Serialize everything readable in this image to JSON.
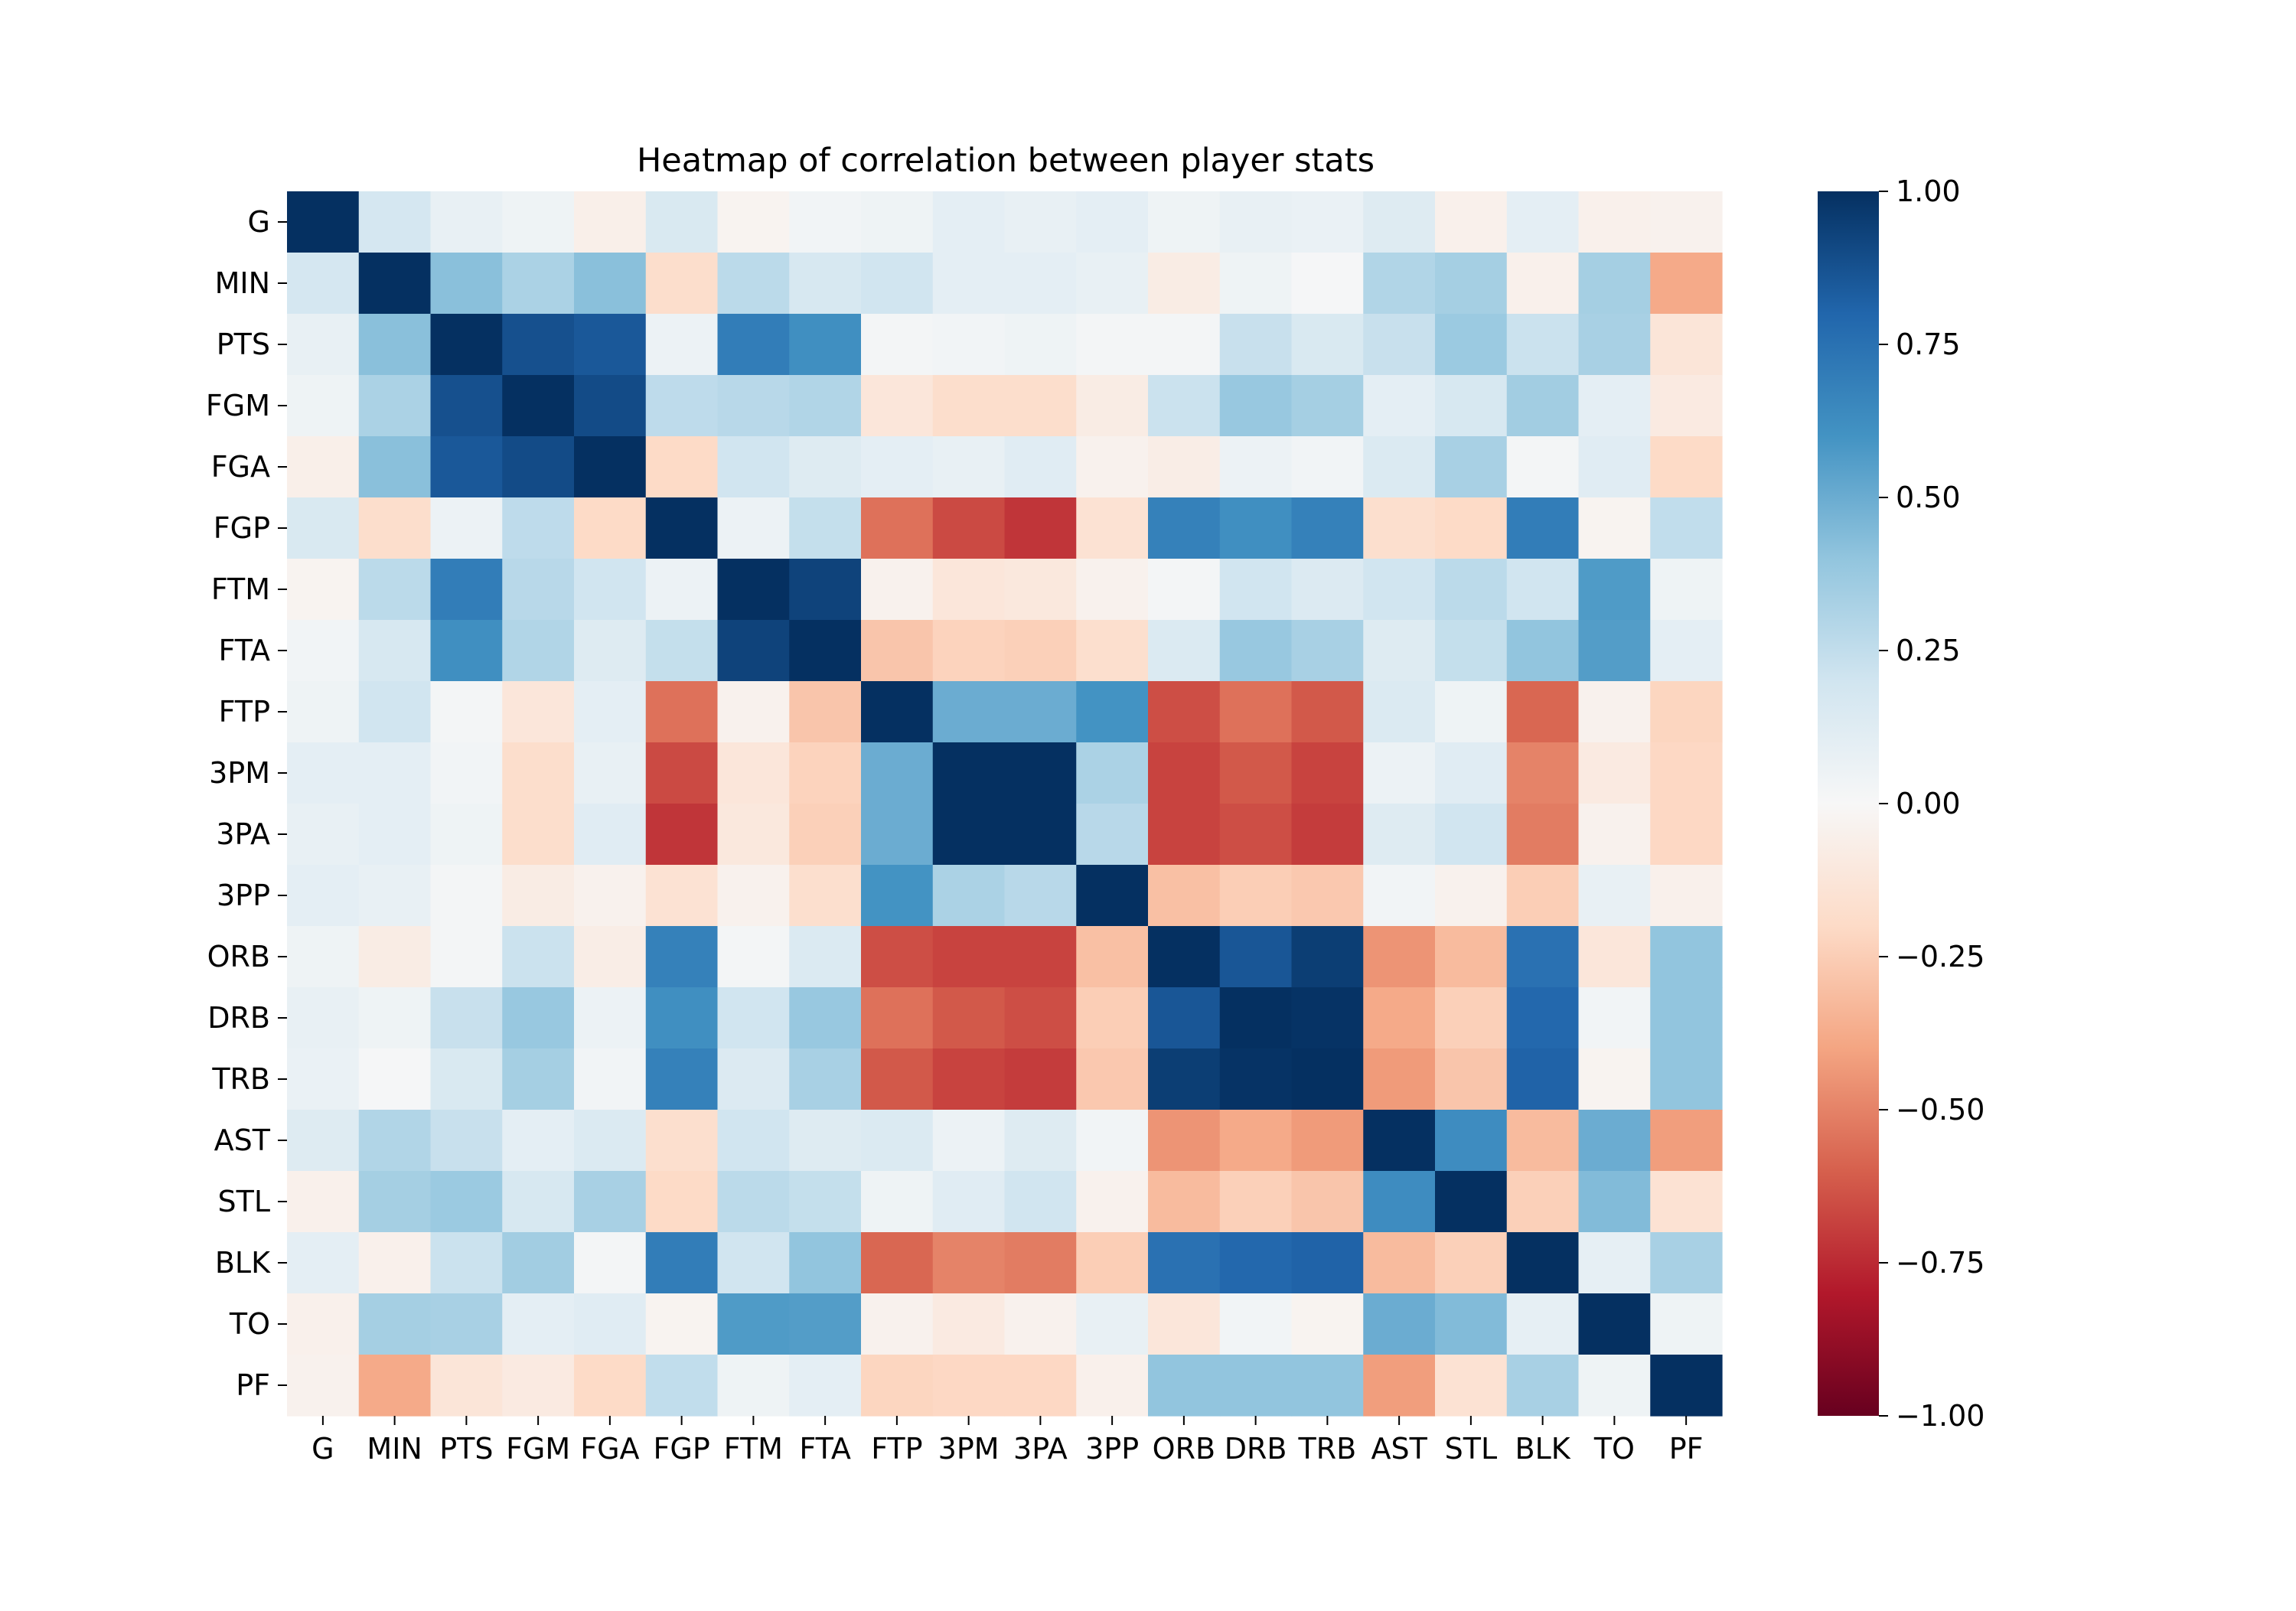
{
  "chart_data": {
    "type": "heatmap",
    "title": "Heatmap of correlation between player stats",
    "xlabel": "",
    "ylabel": "",
    "x_categories": [
      "G",
      "MIN",
      "PTS",
      "FGM",
      "FGA",
      "FGP",
      "FTM",
      "FTA",
      "FTP",
      "3PM",
      "3PA",
      "3PP",
      "ORB",
      "DRB",
      "TRB",
      "AST",
      "STL",
      "BLK",
      "TO",
      "PF"
    ],
    "y_categories": [
      "G",
      "MIN",
      "PTS",
      "FGM",
      "FGA",
      "FGP",
      "FTM",
      "FTA",
      "FTP",
      "3PM",
      "3PA",
      "3PP",
      "ORB",
      "DRB",
      "TRB",
      "AST",
      "STL",
      "BLK",
      "TO",
      "PF"
    ],
    "value_range": [
      -1.0,
      1.0
    ],
    "colormap": "RdBu",
    "colorbar": {
      "ticks": [
        1.0,
        0.75,
        0.5,
        0.25,
        0.0,
        -0.25,
        -0.5,
        -0.75,
        -1.0
      ],
      "tick_labels": [
        "1.00",
        "0.75",
        "0.50",
        "0.25",
        "0.00",
        "−0.25",
        "−0.50",
        "−0.75",
        "−1.00"
      ],
      "placement": "right"
    },
    "grid": false,
    "values": [
      [
        1.0,
        0.18,
        0.08,
        0.05,
        -0.06,
        0.16,
        -0.03,
        0.03,
        0.05,
        0.1,
        0.08,
        0.1,
        0.05,
        0.08,
        0.07,
        0.13,
        -0.05,
        0.1,
        -0.05,
        -0.04
      ],
      [
        0.18,
        1.0,
        0.42,
        0.32,
        0.42,
        -0.18,
        0.27,
        0.17,
        0.2,
        0.1,
        0.1,
        0.08,
        -0.08,
        0.05,
        0.01,
        0.3,
        0.34,
        -0.05,
        0.34,
        -0.38
      ],
      [
        0.08,
        0.42,
        1.0,
        0.88,
        0.85,
        0.06,
        0.7,
        0.62,
        0.02,
        0.03,
        0.05,
        0.02,
        0.02,
        0.23,
        0.16,
        0.23,
        0.37,
        0.22,
        0.33,
        -0.13
      ],
      [
        0.05,
        0.32,
        0.88,
        1.0,
        0.9,
        0.26,
        0.28,
        0.3,
        -0.12,
        -0.18,
        -0.18,
        -0.08,
        0.22,
        0.38,
        0.34,
        0.1,
        0.17,
        0.35,
        0.1,
        -0.09
      ],
      [
        -0.06,
        0.42,
        0.85,
        0.9,
        1.0,
        -0.2,
        0.2,
        0.13,
        0.1,
        0.08,
        0.12,
        -0.04,
        -0.07,
        0.06,
        0.03,
        0.15,
        0.33,
        0.02,
        0.12,
        -0.2
      ],
      [
        0.16,
        -0.18,
        0.06,
        0.26,
        -0.2,
        1.0,
        0.06,
        0.24,
        -0.55,
        -0.66,
        -0.72,
        -0.15,
        0.68,
        0.62,
        0.68,
        -0.17,
        -0.2,
        0.7,
        -0.03,
        0.25
      ],
      [
        -0.03,
        0.27,
        0.7,
        0.28,
        0.2,
        0.06,
        1.0,
        0.93,
        -0.04,
        -0.12,
        -0.11,
        -0.04,
        0.02,
        0.2,
        0.14,
        0.2,
        0.27,
        0.2,
        0.57,
        0.05
      ],
      [
        0.03,
        0.17,
        0.62,
        0.3,
        0.13,
        0.24,
        0.93,
        1.0,
        -0.28,
        -0.23,
        -0.24,
        -0.17,
        0.15,
        0.38,
        0.33,
        0.13,
        0.24,
        0.4,
        0.56,
        0.1
      ],
      [
        0.05,
        0.2,
        0.02,
        -0.12,
        0.1,
        -0.55,
        -0.04,
        -0.28,
        1.0,
        0.5,
        0.5,
        0.6,
        -0.65,
        -0.55,
        -0.62,
        0.15,
        0.05,
        -0.58,
        -0.04,
        -0.22
      ],
      [
        0.1,
        0.1,
        0.03,
        -0.18,
        0.08,
        -0.66,
        -0.12,
        -0.23,
        0.5,
        1.0,
        1.0,
        0.32,
        -0.68,
        -0.62,
        -0.68,
        0.06,
        0.12,
        -0.5,
        -0.09,
        -0.21
      ],
      [
        0.08,
        0.1,
        0.05,
        -0.18,
        0.12,
        -0.72,
        -0.11,
        -0.24,
        0.5,
        1.0,
        1.0,
        0.28,
        -0.68,
        -0.65,
        -0.7,
        0.13,
        0.2,
        -0.52,
        -0.04,
        -0.21
      ],
      [
        0.1,
        0.08,
        0.02,
        -0.08,
        -0.04,
        -0.15,
        -0.04,
        -0.17,
        0.6,
        0.32,
        0.28,
        1.0,
        -0.3,
        -0.25,
        -0.27,
        0.03,
        -0.04,
        -0.25,
        0.08,
        -0.05
      ],
      [
        0.05,
        -0.08,
        0.02,
        0.22,
        -0.07,
        0.68,
        0.02,
        0.15,
        -0.65,
        -0.68,
        -0.68,
        -0.3,
        1.0,
        0.86,
        0.95,
        -0.45,
        -0.32,
        0.75,
        -0.12,
        0.4
      ],
      [
        0.08,
        0.05,
        0.23,
        0.38,
        0.06,
        0.62,
        0.2,
        0.38,
        -0.55,
        -0.62,
        -0.65,
        -0.25,
        0.86,
        1.0,
        0.99,
        -0.38,
        -0.24,
        0.79,
        0.03,
        0.4
      ],
      [
        0.07,
        0.01,
        0.16,
        0.34,
        0.03,
        0.68,
        0.14,
        0.33,
        -0.62,
        -0.68,
        -0.7,
        -0.27,
        0.95,
        0.99,
        1.0,
        -0.43,
        -0.28,
        0.81,
        -0.03,
        0.4
      ],
      [
        0.13,
        0.3,
        0.23,
        0.1,
        0.15,
        -0.17,
        0.2,
        0.13,
        0.15,
        0.06,
        0.13,
        0.03,
        -0.45,
        -0.38,
        -0.43,
        1.0,
        0.63,
        -0.32,
        0.5,
        -0.42
      ],
      [
        -0.05,
        0.34,
        0.37,
        0.17,
        0.33,
        -0.2,
        0.27,
        0.24,
        0.05,
        0.12,
        0.2,
        -0.04,
        -0.32,
        -0.24,
        -0.28,
        0.63,
        1.0,
        -0.24,
        0.44,
        -0.15
      ],
      [
        0.1,
        -0.05,
        0.22,
        0.35,
        0.02,
        0.7,
        0.2,
        0.4,
        -0.58,
        -0.5,
        -0.52,
        -0.25,
        0.75,
        0.79,
        0.81,
        -0.32,
        -0.24,
        1.0,
        0.09,
        0.33
      ],
      [
        -0.05,
        0.34,
        0.33,
        0.1,
        0.12,
        -0.03,
        0.57,
        0.56,
        -0.04,
        -0.09,
        -0.04,
        0.08,
        -0.12,
        0.03,
        -0.03,
        0.5,
        0.44,
        0.09,
        1.0,
        0.05
      ],
      [
        -0.04,
        -0.38,
        -0.13,
        -0.09,
        -0.2,
        0.25,
        0.05,
        0.1,
        -0.22,
        -0.21,
        -0.21,
        -0.05,
        0.4,
        0.4,
        0.4,
        -0.42,
        -0.15,
        0.33,
        0.05,
        1.0
      ]
    ]
  }
}
